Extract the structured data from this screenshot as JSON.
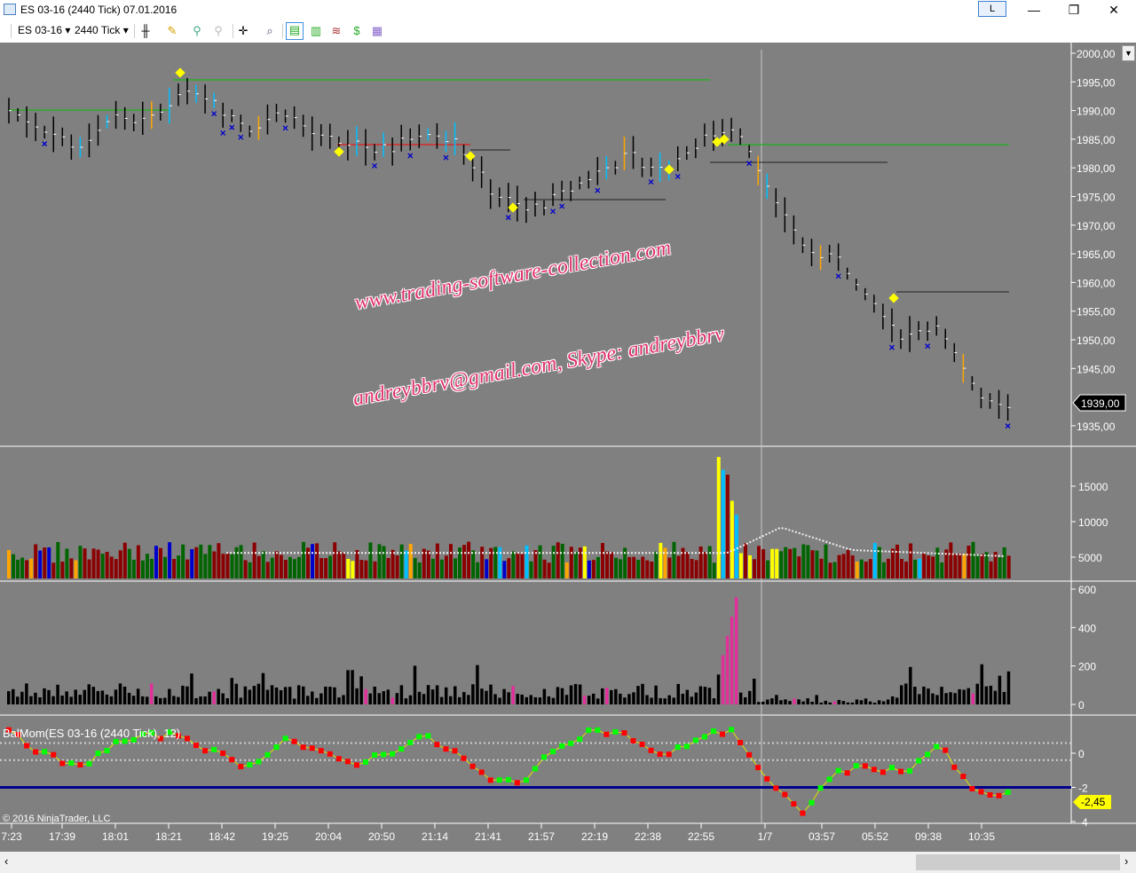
{
  "window": {
    "title": "ES 03-16 (2440 Tick)  07.01.2016",
    "link_button": "L",
    "minimize": "—",
    "maximize": "❐",
    "close": "✕"
  },
  "toolbar": {
    "instrument": "ES 03-16",
    "interval": "2440 Tick",
    "dropdown": "▾"
  },
  "watermark": {
    "line1": "www.trading-software-collection.com",
    "line2": "andreybbrv@gmail.com, Skype: andreybbrv"
  },
  "price_panel": {
    "axis_labels": [
      "2000,00",
      "1995,00",
      "1990,00",
      "1985,00",
      "1980,00",
      "1975,00",
      "1970,00",
      "1965,00",
      "1960,00",
      "1955,00",
      "1950,00",
      "1945,00",
      "1935,00"
    ],
    "last_price": "1939,00"
  },
  "volume_panel": {
    "axis_labels": [
      "15000",
      "10000",
      "5000"
    ]
  },
  "panel3": {
    "axis_labels": [
      "600",
      "400",
      "200",
      "0"
    ]
  },
  "balmom_panel": {
    "title": "BalMom(ES 03-16 (2440 Tick), 12)",
    "axis_labels": [
      "0",
      "-2",
      "-4"
    ],
    "last_value": "-2,45"
  },
  "copyright": "© 2016 NinjaTrader, LLC",
  "time_axis": [
    "7:23",
    "17:39",
    "18:01",
    "18:21",
    "18:42",
    "19:25",
    "20:04",
    "20:50",
    "21:14",
    "21:41",
    "21:57",
    "22:19",
    "22:38",
    "22:55",
    "1/7",
    "03:57",
    "05:52",
    "09:38",
    "10:35"
  ],
  "chart_data": {
    "type": "line",
    "price_path": [
      1990,
      1987,
      1983.5,
      1989,
      1988,
      1993,
      1991,
      1987,
      1990,
      1985,
      1984,
      1983,
      1986.5,
      1984.5,
      1976,
      1972.5,
      1975,
      1979,
      1982,
      1979.5,
      1984.5,
      1987.5,
      1977,
      1966,
      1964.5,
      1958,
      1950,
      1953,
      1941,
      1939
    ],
    "price_ylim": [
      1933,
      2001.5
    ],
    "volume_ylim": [
      3500,
      20000
    ],
    "panel3_ylim": [
      0,
      600
    ],
    "balmom_path": [
      1.2,
      0,
      -0.9,
      0.5,
      1,
      1.1,
      0,
      -0.8,
      0.9,
      0,
      -0.6,
      0,
      1,
      0,
      -1.7,
      -1.5,
      0.5,
      1.4,
      1,
      -0.3,
      0.9,
      1.4,
      -1.6,
      -3.5,
      -1.1,
      -0.8,
      -1.1,
      0.5,
      -2.3,
      -2.45
    ],
    "balmom_ylim": [
      -4.1,
      2.2
    ],
    "balmom_levels": [
      0.6,
      -0.4,
      -2
    ]
  },
  "colors": {
    "background": "#808080",
    "up": "#00ff00",
    "down": "#ff0000",
    "baseline": "#00008b",
    "last_price_bg": "#000000",
    "last_value_bg": "#ffff00"
  }
}
